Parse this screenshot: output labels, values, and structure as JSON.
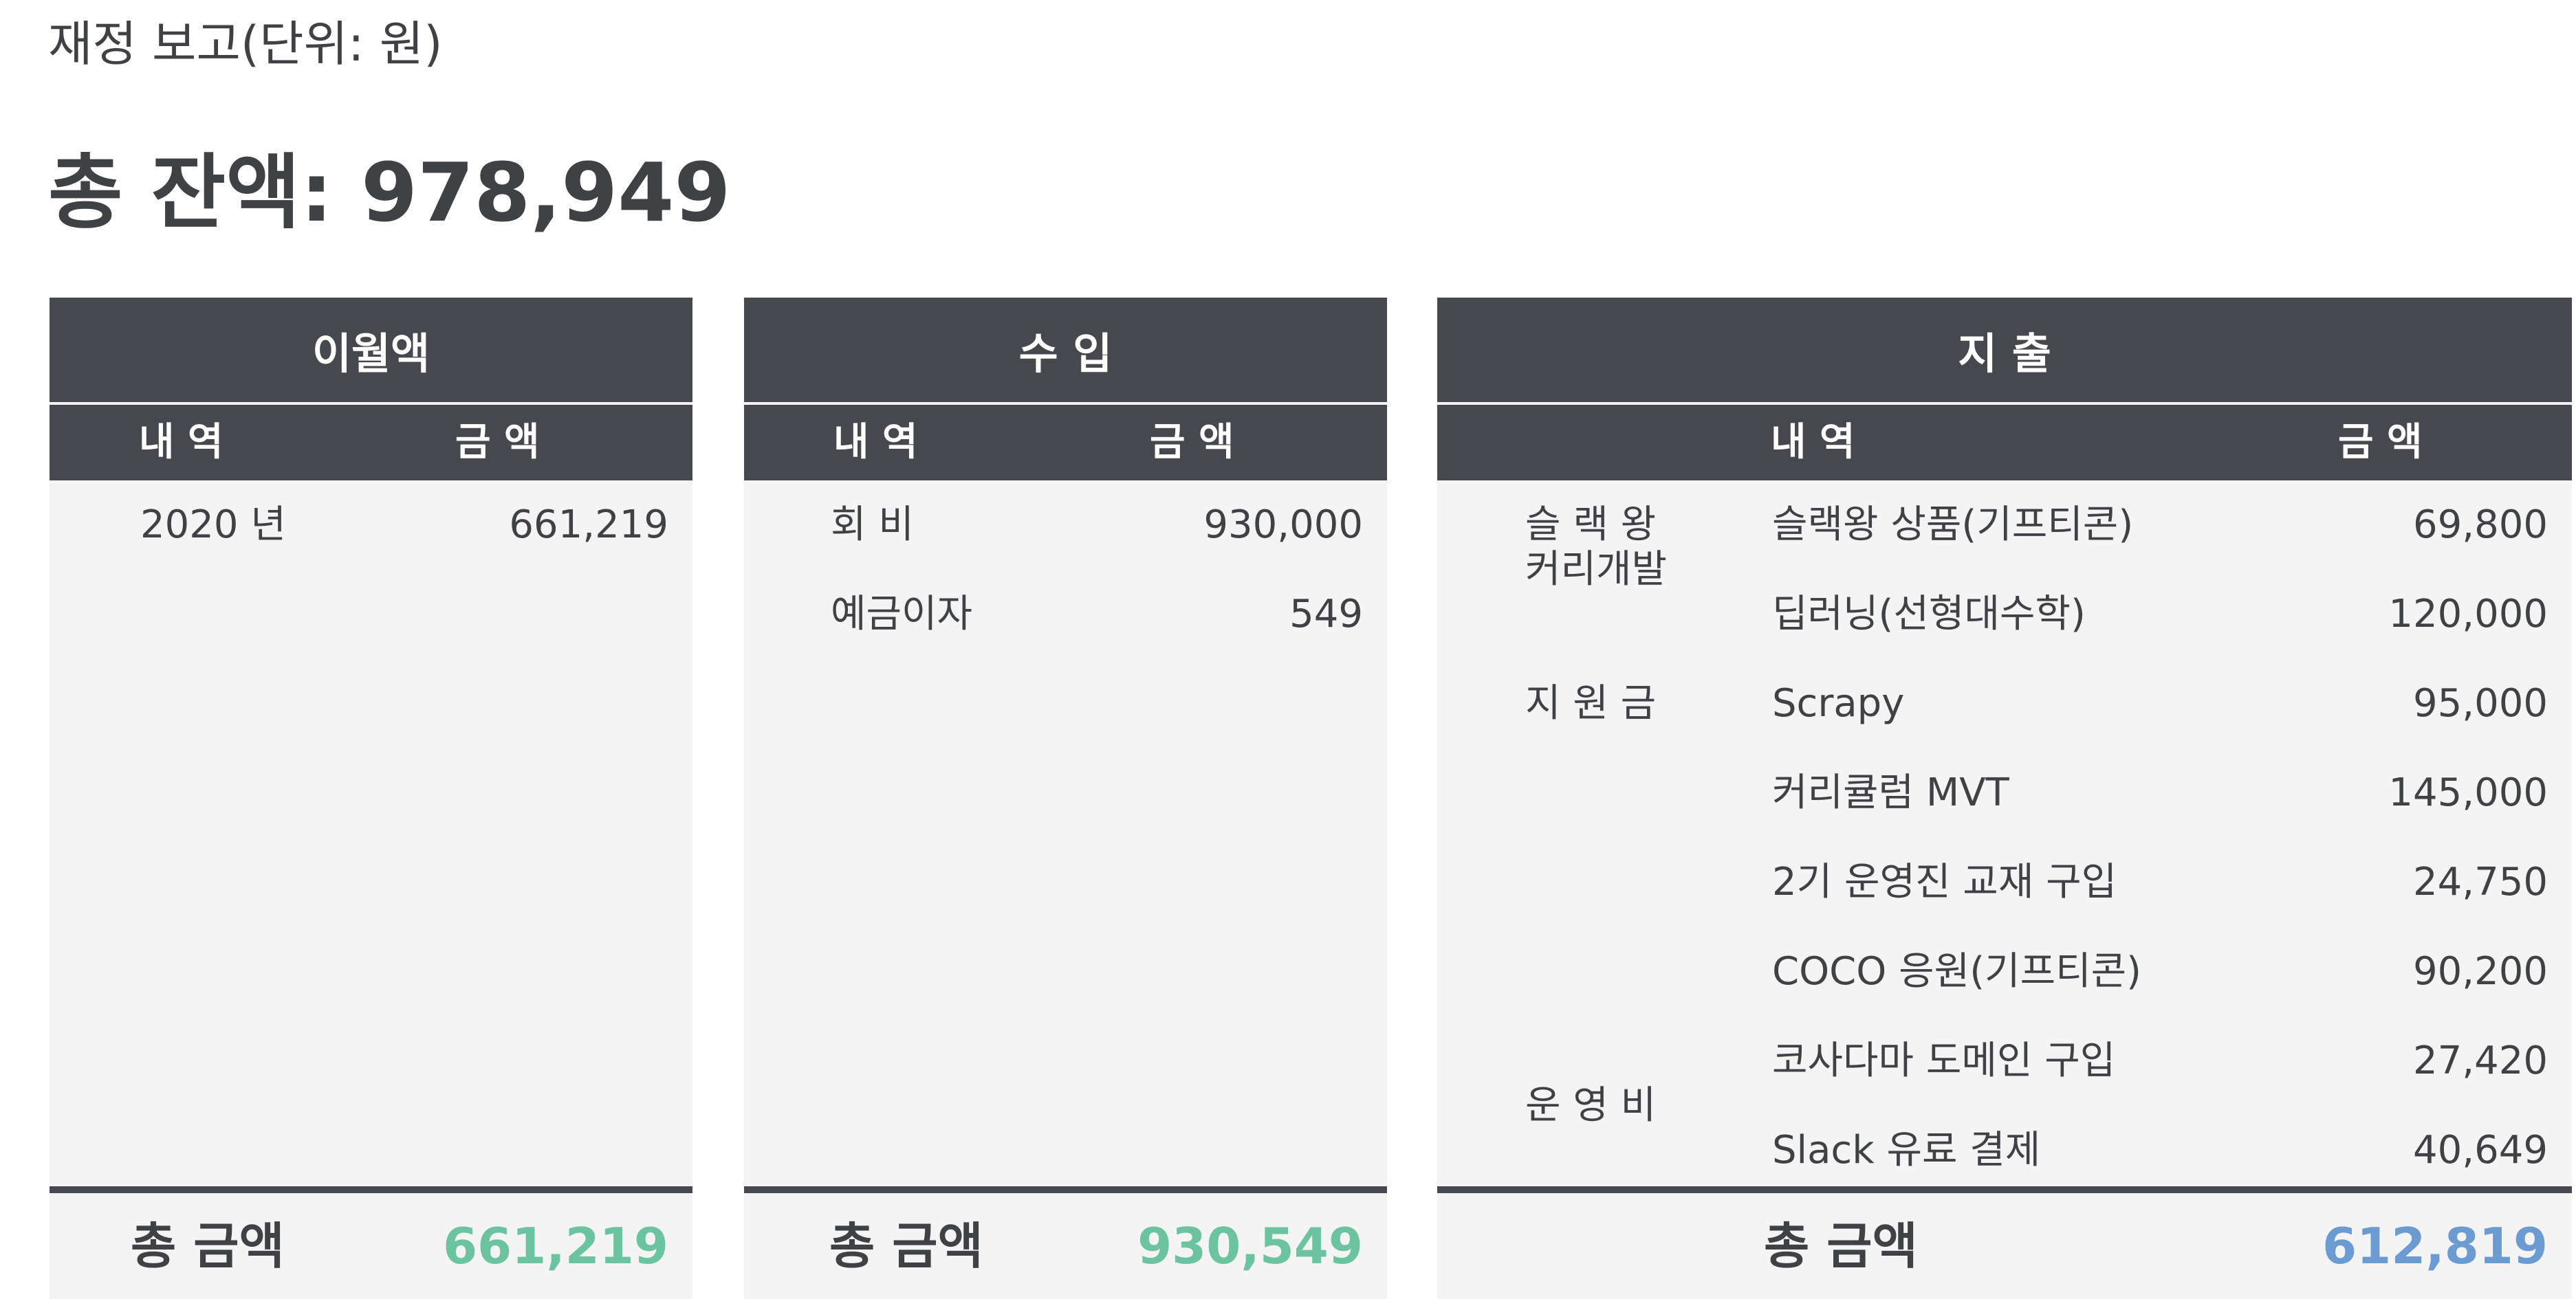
{
  "report": {
    "subtitle": "재정 보고(단위: 원)",
    "total_balance": "총 잔액: 978,949"
  },
  "colors": {
    "header_bg": "#46484d",
    "panel_bg": "#f4f4f4",
    "text": "#3f4145",
    "income_total": "#6cc3a0",
    "expense_total": "#6b9bd1"
  },
  "carryover": {
    "title": "이월액",
    "col_item": "내 역",
    "col_amount": "금 액",
    "rows": [
      {
        "item": "2020 년",
        "amount": "661,219"
      }
    ],
    "total_label": "총 금액",
    "total_value": "661,219"
  },
  "income": {
    "title": "수 입",
    "col_item": "내 역",
    "col_amount": "금 액",
    "rows": [
      {
        "item": "회 비",
        "amount": "930,000"
      },
      {
        "item": "예금이자",
        "amount": "549"
      }
    ],
    "total_label": "총 금액",
    "total_value": "930,549"
  },
  "expense": {
    "title": "지 출",
    "col_item": "내 역",
    "col_amount": "금 액",
    "categories": [
      "슬 랙 왕",
      "커리개발",
      "지 원 금",
      "운 영 비"
    ],
    "rows": [
      {
        "item": "슬랙왕 상품(기프티콘)",
        "amount": "69,800"
      },
      {
        "item": "딥러닝(선형대수학)",
        "amount": "120,000"
      },
      {
        "item": "Scrapy",
        "amount": "95,000"
      },
      {
        "item": "커리큘럼 MVT",
        "amount": "145,000"
      },
      {
        "item": "2기 운영진 교재 구입",
        "amount": "24,750"
      },
      {
        "item": "COCO 응원(기프티콘)",
        "amount": "90,200"
      },
      {
        "item": "코사다마 도메인 구입",
        "amount": "27,420"
      },
      {
        "item": "Slack 유료 결제",
        "amount": "40,649"
      }
    ],
    "total_label": "총 금액",
    "total_value": "612,819"
  }
}
